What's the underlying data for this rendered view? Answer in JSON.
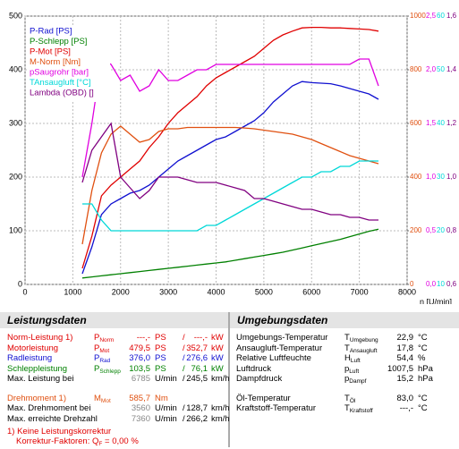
{
  "chart_data": {
    "type": "line",
    "x_label": "n [U/min]",
    "x": [
      1200,
      1400,
      1600,
      1800,
      2000,
      2200,
      2400,
      2600,
      2800,
      3000,
      3200,
      3400,
      3600,
      3800,
      4000,
      4200,
      4400,
      4600,
      4800,
      5000,
      5200,
      5400,
      5600,
      5800,
      6000,
      6200,
      6400,
      6600,
      6800,
      7000,
      7200,
      7400
    ],
    "xlim": [
      0,
      8000
    ],
    "xticks": [
      0,
      1000,
      2000,
      3000,
      4000,
      5000,
      6000,
      7000,
      8000
    ],
    "ylim": [
      0,
      500
    ],
    "yticks": [
      0,
      100,
      200,
      300,
      400,
      500
    ],
    "y2lim": [
      0,
      1000
    ],
    "y2ticks": [
      0,
      200,
      400,
      600,
      800,
      1000
    ],
    "y2color": "#e05010",
    "y3lim": [
      0,
      2.5
    ],
    "y3ticks": [
      {
        "value": 0,
        "label": "0,0"
      },
      {
        "value": 0.5,
        "label": "0,5"
      },
      {
        "value": 1,
        "label": "1,0"
      },
      {
        "value": 1.5,
        "label": "1,5"
      },
      {
        "value": 2,
        "label": "2,0"
      },
      {
        "value": 2.5,
        "label": "2,5"
      }
    ],
    "y3color": "#e000e0",
    "y4lim": [
      10,
      60
    ],
    "y4ticks": [
      10,
      20,
      30,
      40,
      50,
      60
    ],
    "y4color": "#00d8d8",
    "y5lim": [
      0.6,
      1.6
    ],
    "y5ticks": [
      {
        "value": 0.6,
        "label": "0,6"
      },
      {
        "value": 0.8,
        "label": "0,8"
      },
      {
        "value": 1,
        "label": "1,0"
      },
      {
        "value": 1.2,
        "label": "1,2"
      },
      {
        "value": 1.4,
        "label": "1,4"
      },
      {
        "value": 1.6,
        "label": "1,6"
      }
    ],
    "y5color": "#800080",
    "grid": true,
    "series": [
      {
        "name": "P-Rad [PS]",
        "color": "#1010d0",
        "axis": "y",
        "values": [
          20,
          70,
          130,
          150,
          160,
          170,
          175,
          185,
          200,
          215,
          230,
          240,
          250,
          260,
          270,
          275,
          285,
          295,
          305,
          320,
          340,
          355,
          370,
          378,
          376,
          375,
          374,
          370,
          365,
          360,
          355,
          345
        ]
      },
      {
        "name": "P-Schlepp [PS]",
        "color": "#008000",
        "axis": "y",
        "values": [
          12,
          14,
          16,
          18,
          20,
          22,
          24,
          26,
          28,
          30,
          32,
          34,
          36,
          38,
          40,
          42,
          45,
          48,
          51,
          54,
          57,
          60,
          64,
          68,
          72,
          76,
          80,
          84,
          89,
          94,
          99,
          103
        ]
      },
      {
        "name": "P-Mot [PS]",
        "color": "#e00000",
        "axis": "y",
        "values": [
          30,
          90,
          165,
          185,
          200,
          215,
          230,
          255,
          275,
          300,
          320,
          335,
          350,
          370,
          385,
          395,
          405,
          415,
          425,
          440,
          455,
          465,
          472,
          478,
          479,
          479,
          478,
          478,
          477,
          476,
          475,
          472
        ]
      },
      {
        "name": "M-Norm [Nm]",
        "color": "#e05010",
        "axis": "y2",
        "values": [
          150,
          350,
          490,
          560,
          590,
          560,
          530,
          540,
          570,
          580,
          580,
          585,
          585,
          585,
          585,
          585,
          585,
          583,
          580,
          575,
          570,
          565,
          560,
          550,
          540,
          525,
          510,
          495,
          480,
          470,
          460,
          450
        ]
      },
      {
        "name": "pSaugrohr [bar]",
        "color": "#e000e0",
        "axis": "y3",
        "values": [
          1.0,
          1.5,
          2.1,
          2.05,
          1.9,
          1.95,
          1.8,
          1.85,
          2.0,
          1.9,
          1.9,
          1.95,
          2.0,
          2.0,
          2.05,
          2.05,
          2.05,
          2.05,
          2.05,
          2.05,
          2.05,
          2.05,
          2.05,
          2.05,
          2.05,
          2.05,
          2.05,
          2.05,
          2.05,
          2.1,
          2.1,
          1.85
        ]
      },
      {
        "name": "TAnsaugluft [°C]",
        "color": "#00d8d8",
        "axis": "y4",
        "values": [
          25,
          25,
          22,
          20,
          20,
          20,
          20,
          20,
          20,
          20,
          20,
          20,
          20,
          21,
          21,
          22,
          23,
          24,
          25,
          26,
          27,
          28,
          29,
          30,
          30,
          31,
          31,
          32,
          32,
          33,
          33,
          33
        ]
      },
      {
        "name": "Lambda (OBD) []",
        "color": "#800080",
        "axis": "y5",
        "values": [
          0.98,
          1.1,
          1.15,
          1.2,
          1.0,
          0.96,
          0.92,
          0.95,
          1.0,
          1.0,
          1.0,
          0.99,
          0.98,
          0.98,
          0.98,
          0.97,
          0.96,
          0.95,
          0.92,
          0.92,
          0.91,
          0.9,
          0.89,
          0.88,
          0.88,
          0.87,
          0.86,
          0.86,
          0.85,
          0.85,
          0.84,
          0.84
        ]
      }
    ]
  },
  "leistung": {
    "title": "Leistungsdaten",
    "rows": [
      {
        "color": "#e00000",
        "label": "Norm-Leistung 1)",
        "sym": {
          "main": "P",
          "sub": "Norm"
        },
        "v1": "---,-",
        "u1": "PS",
        "sep": "/",
        "v2": "---,-",
        "u2": "kW"
      },
      {
        "color": "#e00000",
        "label": "Motorleistung",
        "sym": {
          "main": "P",
          "sub": "Mot"
        },
        "v1": "479,5",
        "u1": "PS",
        "sep": "/",
        "v2": "352,7",
        "u2": "kW"
      },
      {
        "color": "#1010d0",
        "label": "Radleistung",
        "sym": {
          "main": "P",
          "sub": "Rad"
        },
        "v1": "376,0",
        "u1": "PS",
        "sep": "/",
        "v2": "276,6",
        "u2": "kW"
      },
      {
        "color": "#008000",
        "label": "Schleppleistung",
        "sym": {
          "main": "P",
          "sub": "Schlepp"
        },
        "v1": "103,5",
        "u1": "PS",
        "sep": "/",
        "v2": "76,1",
        "u2": "kW"
      },
      {
        "color": "#000",
        "v1_color": "#888",
        "label": "Max. Leistung bei",
        "v1": "6785",
        "u1": "U/min",
        "sep": "/",
        "v2": "245,5",
        "u2": "km/h"
      },
      {
        "color": "#e05010",
        "gap": true,
        "label": "Drehmoment 1)",
        "sym": {
          "main": "M",
          "sub": "Mot"
        },
        "v1": "585,7",
        "u1": "Nm"
      },
      {
        "color": "#000",
        "v1_color": "#888",
        "label": "Max. Drehmoment bei",
        "v1": "3560",
        "u1": "U/min",
        "sep": "/",
        "v2": "128,7",
        "u2": "km/h"
      },
      {
        "color": "#000",
        "v1_color": "#888",
        "label": "Max. erreichte Drehzahl",
        "v1": "7360",
        "u1": "U/min",
        "sep": "/",
        "v2": "266,2",
        "u2": "km/h"
      }
    ],
    "note": "1) Keine Leistungskorrektur",
    "factor": {
      "pre": "Korrektur-Faktoren: Q",
      "sub": "F",
      "post": " =  0,00 %"
    }
  },
  "umgebung": {
    "title": "Umgebungsdaten",
    "rows": [
      {
        "label": "Umgebungs-Temperatur",
        "sym": {
          "main": "T",
          "sub": "Umgebung"
        },
        "v": "22,9",
        "u": "°C"
      },
      {
        "label": "Ansaugluft-Temperatur",
        "sym": {
          "main": "T",
          "sub": "Ansaugluft"
        },
        "v": "17,8",
        "u": "°C"
      },
      {
        "label": "Relative Luftfeuchte",
        "sym": {
          "main": "H",
          "sub": "Luft"
        },
        "v": "54,4",
        "u": "%"
      },
      {
        "label": "Luftdruck",
        "sym": {
          "main": "p",
          "sub": "Luft"
        },
        "v": "1007,5",
        "u": "hPa"
      },
      {
        "label": "Dampfdruck",
        "sym": {
          "main": "p",
          "sub": "Dampf"
        },
        "v": "15,2",
        "u": "hPa"
      },
      {
        "gap": true,
        "label": "Öl-Temperatur",
        "sym": {
          "main": "T",
          "sub": "Öl"
        },
        "v": "83,0",
        "u": "°C"
      },
      {
        "label": "Kraftstoff-Temperatur",
        "sym": {
          "main": "T",
          "sub": "Kraftstoff"
        },
        "v": "---,-",
        "u": "°C"
      }
    ]
  }
}
